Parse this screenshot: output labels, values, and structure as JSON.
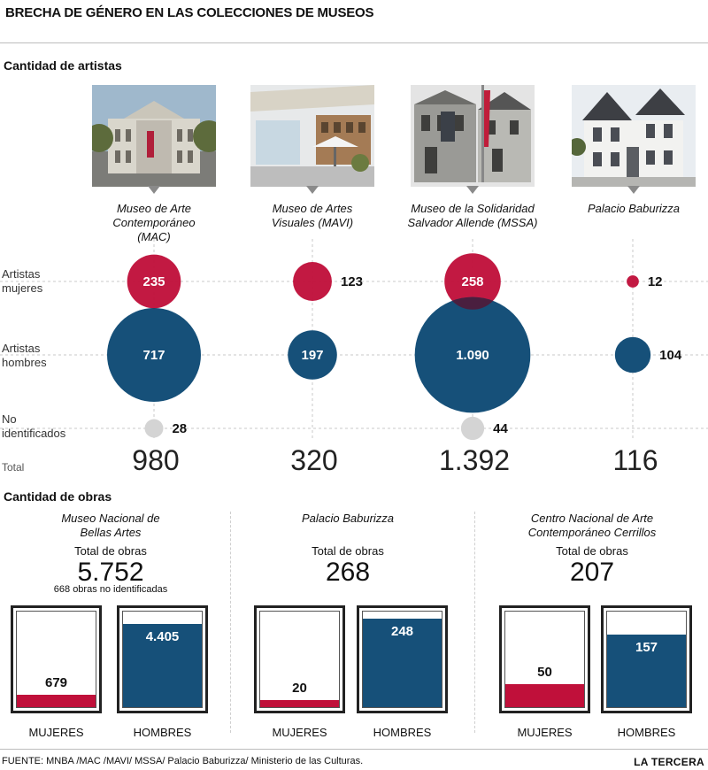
{
  "title": "BRECHA DE GÉNERO EN LAS COLECCIONES DE MUSEOS",
  "section_artists": "Cantidad de artistas",
  "section_works": "Cantidad de obras",
  "row_labels": {
    "women": [
      "Artistas",
      "mujeres"
    ],
    "men": [
      "Artistas",
      "hombres"
    ],
    "unknown": [
      "No",
      "identificados"
    ],
    "total": "Total"
  },
  "colors": {
    "women": "#c0103a",
    "men": "#165079",
    "unknown": "#d4d4d4"
  },
  "chart_data": [
    {
      "type": "scatter",
      "title": "Cantidad de artistas",
      "categories": [
        [
          "Museo de Arte",
          "Contemporáneo",
          "(MAC)"
        ],
        [
          "Museo de Artes",
          "Visuales (MAVI)"
        ],
        [
          "Museo de la Solidaridad",
          "Salvador Allende (MSSA)"
        ],
        [
          "Palacio Baburizza"
        ]
      ],
      "series": [
        {
          "name": "Artistas mujeres",
          "values": [
            235,
            123,
            258,
            12
          ],
          "labels": [
            "235",
            "123",
            "258",
            "12"
          ]
        },
        {
          "name": "Artistas hombres",
          "values": [
            717,
            197,
            1090,
            104
          ],
          "labels": [
            "717",
            "197",
            "1.090",
            "104"
          ]
        },
        {
          "name": "No identificados",
          "values": [
            28,
            null,
            44,
            null
          ],
          "labels": [
            "28",
            "",
            "44",
            ""
          ]
        }
      ],
      "totals": [
        "980",
        "320",
        "1.392",
        "116"
      ],
      "encoding": "bubble area proportional to value"
    },
    {
      "type": "bar",
      "title": "Cantidad de obras",
      "groups": [
        {
          "name": [
            "Museo Nacional de",
            "Bellas Artes"
          ],
          "total_label": "Total de obras",
          "total": "5.752",
          "note": "668 obras no identificadas",
          "women": 679,
          "women_label": "679",
          "men": 4405,
          "men_label": "4.405"
        },
        {
          "name": [
            "Palacio Baburizza"
          ],
          "total_label": "Total de obras",
          "total": "268",
          "note": "",
          "women": 20,
          "women_label": "20",
          "men": 248,
          "men_label": "248"
        },
        {
          "name": [
            "Centro Nacional de Arte",
            "Contemporáneo Cerrillos"
          ],
          "total_label": "Total de obras",
          "total": "207",
          "note": "",
          "women": 50,
          "women_label": "50",
          "men": 157,
          "men_label": "157"
        }
      ],
      "bar_labels": {
        "women": "MUJERES",
        "men": "HOMBRES"
      }
    }
  ],
  "footer": {
    "source": "FUENTE: MNBA /MAC /MAVI/ MSSA/ Palacio Baburizza/ Ministerio de las Culturas.",
    "brand": "LA TERCERA"
  }
}
